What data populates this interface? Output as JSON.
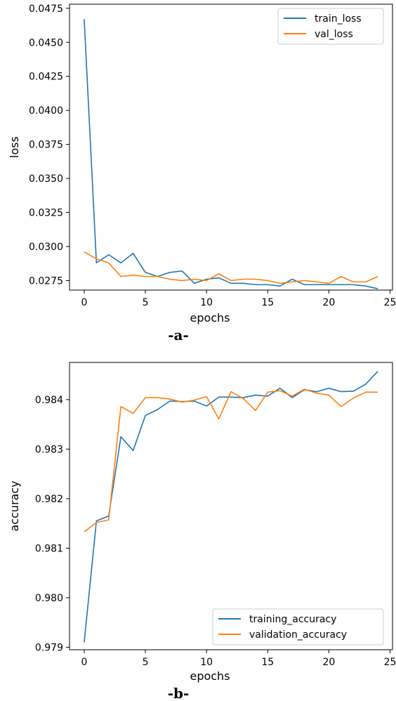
{
  "colors": {
    "series1": "#1f77b4",
    "series2": "#ff7f0e"
  },
  "chart_data": [
    {
      "type": "line",
      "caption": "-a-",
      "xlabel": "epochs",
      "ylabel": "loss",
      "xlim": [
        -1.2,
        25.2
      ],
      "ylim": [
        0.0268,
        0.0478
      ],
      "xticks": [
        0,
        5,
        10,
        15,
        20,
        25
      ],
      "yticks": [
        0.0275,
        0.03,
        0.0325,
        0.035,
        0.0375,
        0.04,
        0.0425,
        0.045,
        0.0475
      ],
      "ytick_labels": [
        "0.0275",
        "0.0300",
        "0.0325",
        "0.0350",
        "0.0375",
        "0.0400",
        "0.0425",
        "0.0450",
        "0.0475"
      ],
      "xtick_labels": [
        "0",
        "5",
        "10",
        "15",
        "20",
        "25"
      ],
      "legend_position": "top-right",
      "x": [
        0,
        1,
        2,
        3,
        4,
        5,
        6,
        7,
        8,
        9,
        10,
        11,
        12,
        13,
        14,
        15,
        16,
        17,
        18,
        19,
        20,
        21,
        22,
        23,
        24
      ],
      "series": [
        {
          "name": "train_loss",
          "values": [
            0.0467,
            0.0288,
            0.0294,
            0.0288,
            0.0295,
            0.0281,
            0.0278,
            0.0281,
            0.0282,
            0.0273,
            0.0276,
            0.0277,
            0.0273,
            0.0273,
            0.0272,
            0.0272,
            0.0271,
            0.0276,
            0.0272,
            0.0272,
            0.0272,
            0.0272,
            0.0272,
            0.0271,
            0.0269
          ]
        },
        {
          "name": "val_loss",
          "values": [
            0.0296,
            0.0291,
            0.0288,
            0.0278,
            0.0279,
            0.0278,
            0.0278,
            0.0276,
            0.0275,
            0.0276,
            0.0275,
            0.028,
            0.0275,
            0.0276,
            0.0276,
            0.0275,
            0.0273,
            0.0274,
            0.0275,
            0.0274,
            0.0273,
            0.0278,
            0.0274,
            0.0274,
            0.0278
          ]
        }
      ]
    },
    {
      "type": "line",
      "caption": "-b-",
      "xlabel": "epochs",
      "ylabel": "accuracy",
      "xlim": [
        -1.2,
        25.2
      ],
      "ylim": [
        0.97895,
        0.98475
      ],
      "xticks": [
        0,
        5,
        10,
        15,
        20,
        25
      ],
      "yticks": [
        0.979,
        0.98,
        0.981,
        0.982,
        0.983,
        0.984
      ],
      "ytick_labels": [
        "0.979",
        "0.980",
        "0.981",
        "0.982",
        "0.983",
        "0.984"
      ],
      "xtick_labels": [
        "0",
        "5",
        "10",
        "15",
        "20",
        "25"
      ],
      "legend_position": "bottom-right",
      "x": [
        0,
        1,
        2,
        3,
        4,
        5,
        6,
        7,
        8,
        9,
        10,
        11,
        12,
        13,
        14,
        15,
        16,
        17,
        18,
        19,
        20,
        21,
        22,
        23,
        24
      ],
      "series": [
        {
          "name": "training_accuracy",
          "values": [
            0.9791,
            0.98155,
            0.98165,
            0.98325,
            0.98297,
            0.98368,
            0.9838,
            0.98397,
            0.98396,
            0.98397,
            0.98387,
            0.98405,
            0.98405,
            0.98404,
            0.98409,
            0.98407,
            0.98423,
            0.98404,
            0.9842,
            0.98416,
            0.98423,
            0.98416,
            0.98417,
            0.98431,
            0.98457
          ]
        },
        {
          "name": "validation_accuracy",
          "values": [
            0.98133,
            0.98152,
            0.98157,
            0.98386,
            0.98372,
            0.98404,
            0.98404,
            0.98401,
            0.98395,
            0.98399,
            0.98406,
            0.98361,
            0.98416,
            0.98402,
            0.98378,
            0.98415,
            0.98418,
            0.98407,
            0.98421,
            0.98413,
            0.98409,
            0.98386,
            0.98403,
            0.98415,
            0.98415
          ]
        }
      ]
    }
  ]
}
